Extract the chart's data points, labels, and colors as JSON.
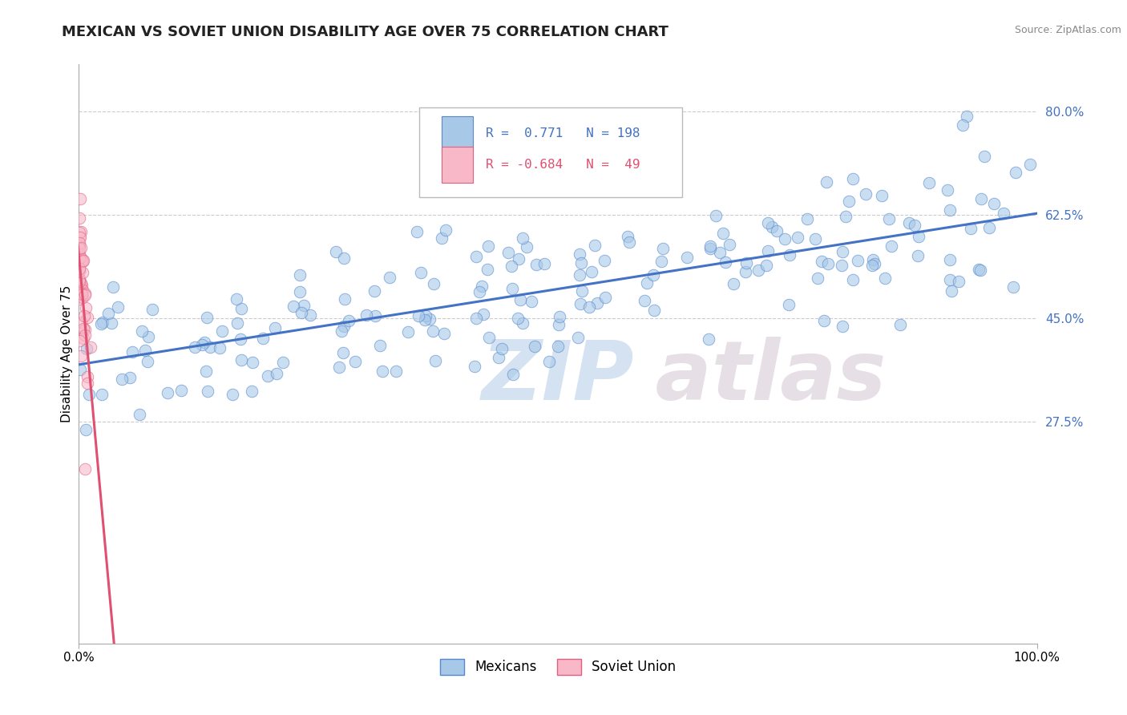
{
  "title": "MEXICAN VS SOVIET UNION DISABILITY AGE OVER 75 CORRELATION CHART",
  "source_text": "Source: ZipAtlas.com",
  "ylabel": "Disability Age Over 75",
  "xlim": [
    0.0,
    1.0
  ],
  "ylim": [
    -0.1,
    0.88
  ],
  "yticks": [
    0.275,
    0.45,
    0.625,
    0.8
  ],
  "ytick_labels": [
    "27.5%",
    "45.0%",
    "62.5%",
    "80.0%"
  ],
  "xtick_labels": [
    "0.0%",
    "100.0%"
  ],
  "blue_color": "#a8c8e8",
  "blue_edge": "#5588cc",
  "pink_color": "#f8b8c8",
  "pink_edge": "#e06080",
  "trend_blue": "#4472c4",
  "trend_pink": "#e05070",
  "R_blue": 0.771,
  "N_blue": 198,
  "R_pink": -0.684,
  "N_pink": 49,
  "background_color": "#ffffff",
  "grid_color": "#cccccc",
  "title_fontsize": 13,
  "axis_label_fontsize": 11,
  "tick_fontsize": 11,
  "legend_blue_text": "R =  0.771   N = 198",
  "legend_pink_text": "R = -0.684   N =  49",
  "legend_blue_color": "#4472c4",
  "legend_pink_color": "#e05070",
  "bottom_legend_labels": [
    "Mexicans",
    "Soviet Union"
  ]
}
